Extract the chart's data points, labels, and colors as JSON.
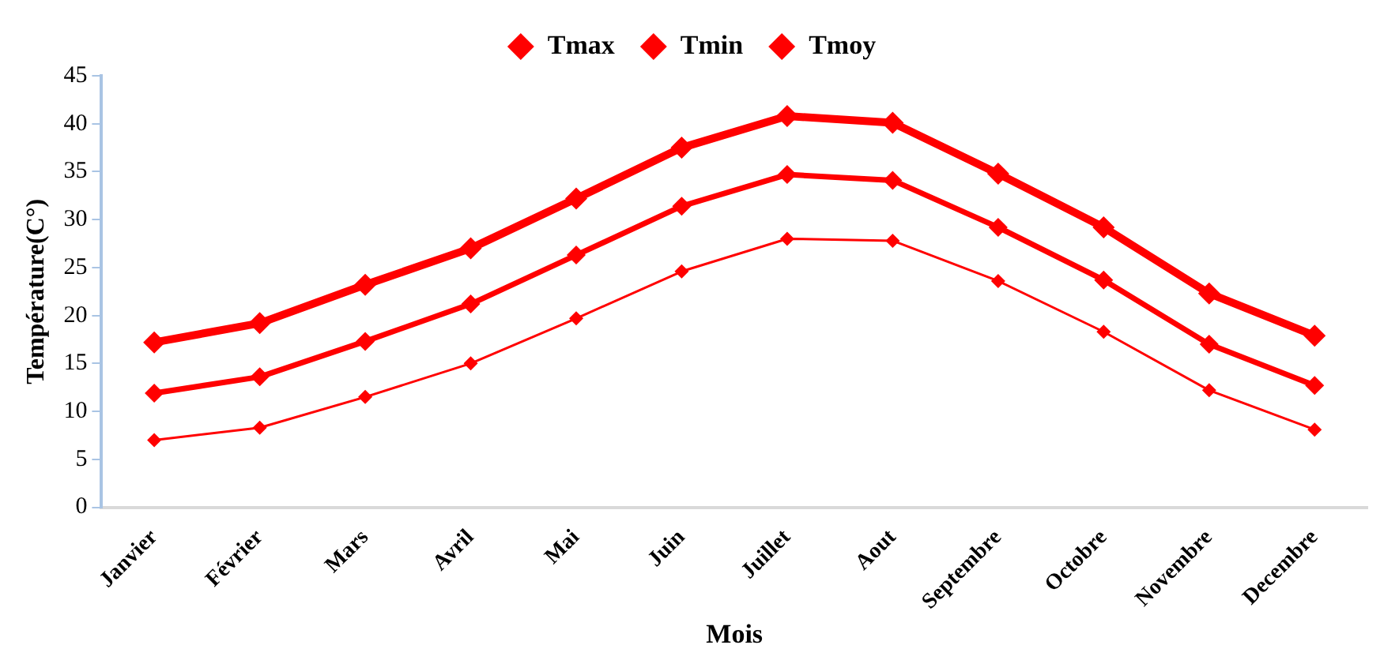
{
  "chart_data": {
    "type": "line",
    "xlabel": "Mois",
    "ylabel": "Température(C°)",
    "categories": [
      "Janvier",
      "Février",
      "Mars",
      "Avril",
      "Mai",
      "Juin",
      "Juillet",
      "Aout",
      "Septembre",
      "Octobre",
      "Novembre",
      "Decembre"
    ],
    "series": [
      {
        "name": "Tmax",
        "color": "#ff0000",
        "values": [
          17.2,
          19.2,
          23.2,
          27,
          32.2,
          37.5,
          40.8,
          40.1,
          34.8,
          29.2,
          22.3,
          17.9
        ]
      },
      {
        "name": "Tmin",
        "color": "#ff0000",
        "values": [
          7,
          8.3,
          11.5,
          15,
          19.7,
          24.6,
          28,
          27.8,
          23.6,
          18.3,
          12.2,
          8.1
        ]
      },
      {
        "name": "Tmoy",
        "color": "#ff0000",
        "values": [
          11.9,
          13.6,
          17.3,
          21.2,
          26.3,
          31.4,
          34.7,
          34.1,
          29.2,
          23.7,
          17,
          12.7
        ]
      }
    ],
    "ylim": [
      0,
      45
    ],
    "yticks": [
      0,
      5,
      10,
      15,
      20,
      25,
      30,
      35,
      40,
      45
    ],
    "grid": false,
    "legend": "top",
    "marker": "diamond",
    "line_style": "solid"
  }
}
